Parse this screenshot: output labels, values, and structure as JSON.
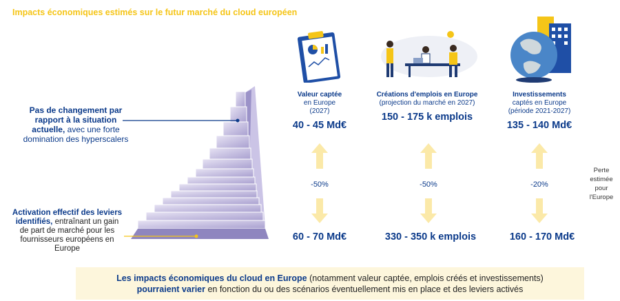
{
  "title": "Impacts économiques estimés sur le futur marché du cloud européen",
  "left_labels": {
    "top": {
      "bold": "Pas de changement par rapport à la situation actuelle,",
      "rest": " avec une forte domination des hyperscalers"
    },
    "bottom": {
      "bold": "Activation effectif des leviers identifiés,",
      "rest": " entraînant un gain de part de marché pour les fournisseurs européens en Europe"
    }
  },
  "columns": [
    {
      "heading_bold": "Valeur captée",
      "heading_rest": "en Europe",
      "sub": "(2027)",
      "top_value": "40 - 45 Md€",
      "pct": "-50%",
      "bottom_value": "60 - 70 Md€",
      "icon": "clipboard-chart-icon"
    },
    {
      "heading_bold": "Créations d'emplois en Europe",
      "heading_rest": "",
      "sub": "(projection du marché en 2027)",
      "top_value": "150 - 175 k emplois",
      "pct": "-50%",
      "bottom_value": "330 - 350 k emplois",
      "icon": "team-office-icon"
    },
    {
      "heading_bold": "Investissements",
      "heading_rest": "captés en Europe",
      "sub": "(période 2021-2027)",
      "top_value": "135 - 140 Md€",
      "pct": "-20%",
      "bottom_value": "160 - 170 Md€",
      "icon": "globe-buildings-icon"
    }
  ],
  "perte_label": "Perte estimée pour l'Europe",
  "banner": {
    "bold1": "Les impacts économiques du cloud en Europe",
    "rest1": " (notamment valeur captée, emplois créés et investissements)",
    "bold2": "pourraient varier",
    "rest2": " en fonction du ou des scénarios éventuellement mis en place et des leviers activés"
  },
  "colors": {
    "title": "#f5c518",
    "text": "#0b3a8a",
    "arrow": "#fbe9a8",
    "stairs": "#b9b2d9",
    "banner": "#fdf6dc"
  }
}
